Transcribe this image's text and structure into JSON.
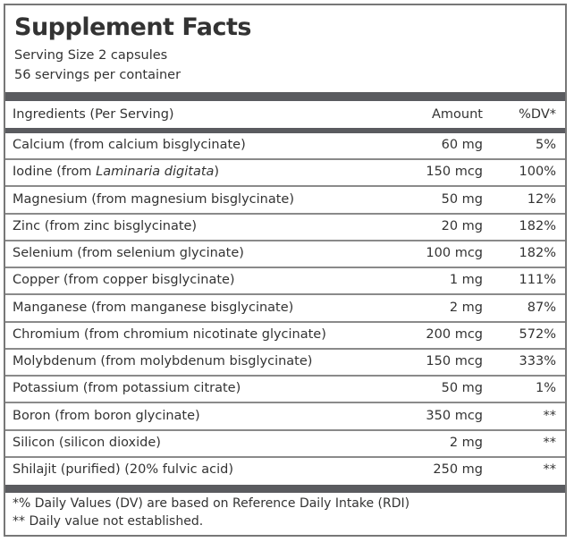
{
  "title": "Supplement Facts",
  "serving_size": "Serving Size 2 capsules",
  "servings_per_container": "56 servings per container",
  "header": {
    "ingredients": "Ingredients (Per Serving)",
    "amount": "Amount",
    "dv": "%DV*"
  },
  "rows": [
    {
      "name": "Calcium (from calcium bisglycinate)",
      "amount": "60 mg",
      "dv": "5%"
    },
    {
      "name": "Iodine (from ",
      "name_italic": "Laminaria digitata",
      "name_suffix": ")",
      "amount": "150 mcg",
      "dv": "100%"
    },
    {
      "name": "Magnesium (from magnesium bisglycinate)",
      "amount": "50 mg",
      "dv": "12%"
    },
    {
      "name": "Zinc (from zinc bisglycinate)",
      "amount": "20 mg",
      "dv": "182%"
    },
    {
      "name": "Selenium (from selenium glycinate)",
      "amount": "100 mcg",
      "dv": "182%"
    },
    {
      "name": "Copper (from copper bisglycinate)",
      "amount": "1 mg",
      "dv": "111%"
    },
    {
      "name": "Manganese (from manganese bisglycinate)",
      "amount": "2 mg",
      "dv": "87%"
    },
    {
      "name": "Chromium (from chromium nicotinate glycinate)",
      "amount": "200 mcg",
      "dv": "572%"
    },
    {
      "name": "Molybdenum (from molybdenum bisglycinate)",
      "amount": "150 mcg",
      "dv": "333%"
    },
    {
      "name": "Potassium (from potassium citrate)",
      "amount": "50 mg",
      "dv": "1%"
    },
    {
      "name": "Boron (from boron glycinate)",
      "amount": "350 mcg",
      "dv": "**"
    },
    {
      "name": "Silicon (silicon dioxide)",
      "amount": "2 mg",
      "dv": "**"
    },
    {
      "name": "Shilajit (purified) (20% fulvic acid)",
      "amount": "250 mg",
      "dv": "**"
    }
  ],
  "footnotes": [
    "*% Daily Values (DV) are based on Reference Daily Intake (RDI)",
    "** Daily value not established."
  ],
  "colors": {
    "bar": "#5a5b5f",
    "border": "#777777"
  }
}
